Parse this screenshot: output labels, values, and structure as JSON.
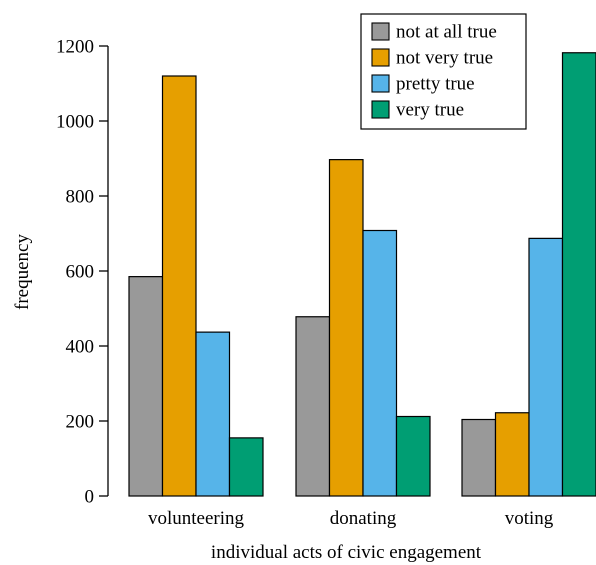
{
  "chart_data": {
    "type": "bar",
    "xlabel": "individual acts of civic engagement",
    "ylabel": "frequency",
    "ylim": [
      0,
      1200
    ],
    "yticks": [
      0,
      200,
      400,
      600,
      800,
      1000,
      1200
    ],
    "categories": [
      "volunteering",
      "donating",
      "voting"
    ],
    "series": [
      {
        "name": "not at all true",
        "color": "#999999",
        "values": [
          585,
          478,
          204
        ]
      },
      {
        "name": "not very true",
        "color": "#e69f00",
        "values": [
          1120,
          897,
          222
        ]
      },
      {
        "name": "pretty true",
        "color": "#56b4e9",
        "values": [
          437,
          708,
          687
        ]
      },
      {
        "name": "very true",
        "color": "#009e73",
        "values": [
          155,
          212,
          1182
        ]
      }
    ],
    "legend_position": "top-right",
    "grid": false
  }
}
